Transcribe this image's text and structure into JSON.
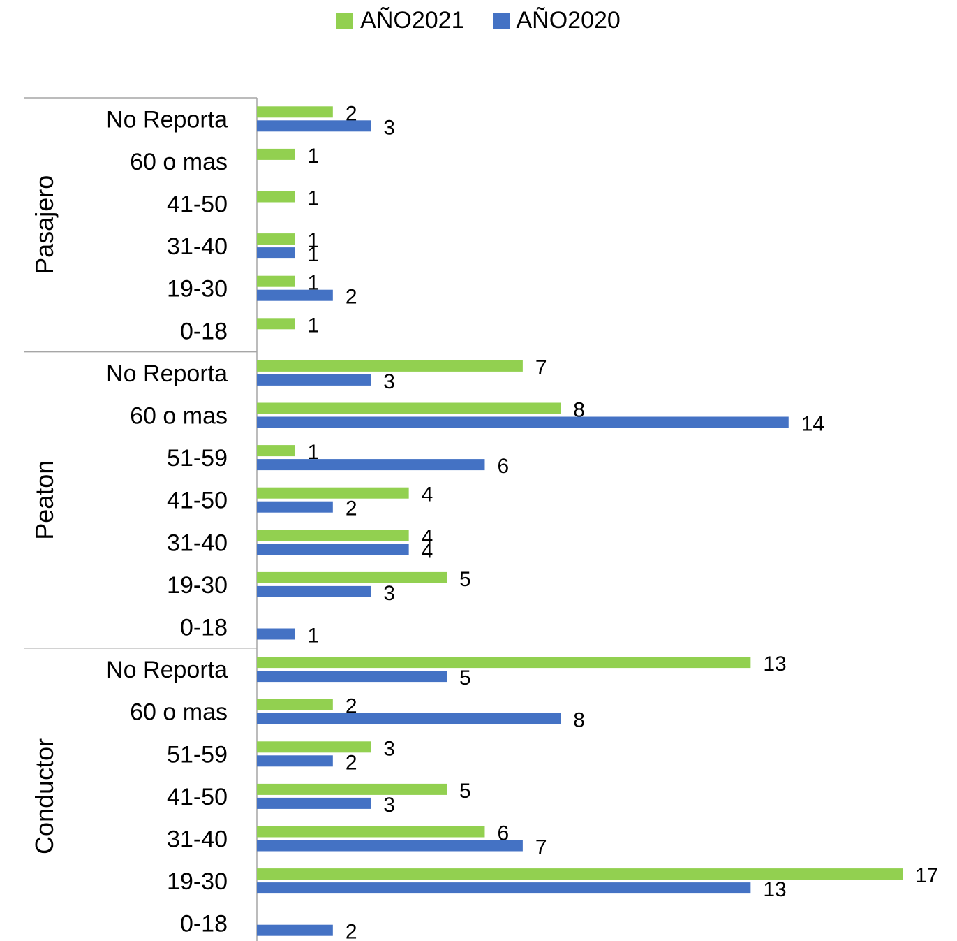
{
  "chart_data": {
    "type": "bar",
    "orientation": "horizontal",
    "legend_position": "top",
    "groups": [
      {
        "name": "Pasajero",
        "categories": [
          "No Reporta",
          "60 o mas",
          "41-50",
          "31-40",
          "19-30",
          "0-18"
        ]
      },
      {
        "name": "Peaton",
        "categories": [
          "No Reporta",
          "60 o mas",
          "51-59",
          "41-50",
          "31-40",
          "19-30",
          "0-18"
        ]
      },
      {
        "name": "Conductor",
        "categories": [
          "No Reporta",
          "60 o mas",
          "51-59",
          "41-50",
          "31-40",
          "19-30",
          "0-18"
        ]
      }
    ],
    "series": [
      {
        "name": "AÑO2021",
        "color": "#92D050",
        "values": [
          [
            2,
            1,
            1,
            1,
            1,
            1
          ],
          [
            7,
            8,
            1,
            4,
            4,
            5,
            null
          ],
          [
            13,
            2,
            3,
            5,
            6,
            17,
            null
          ]
        ]
      },
      {
        "name": "AÑO2020",
        "color": "#4472C4",
        "values": [
          [
            3,
            null,
            null,
            1,
            2,
            null
          ],
          [
            3,
            14,
            6,
            2,
            4,
            3,
            1
          ],
          [
            5,
            8,
            2,
            3,
            7,
            13,
            2
          ]
        ]
      }
    ],
    "xlim": [
      0,
      17
    ],
    "grid": false
  }
}
